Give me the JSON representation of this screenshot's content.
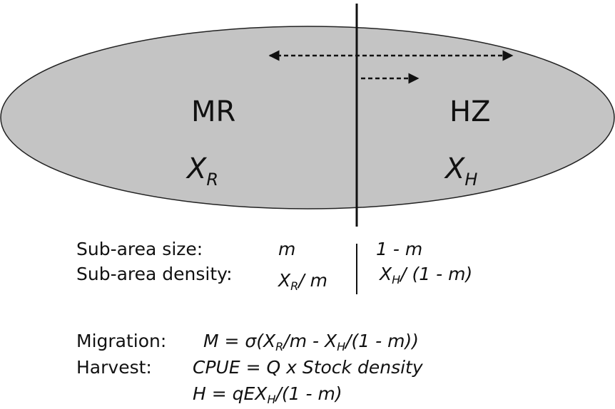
{
  "regions": [
    {
      "name": "MR",
      "symbol": [
        {
          "text": "X"
        },
        {
          "sub": "R"
        }
      ]
    },
    {
      "name": "HZ",
      "symbol": [
        {
          "text": "X"
        },
        {
          "sub": "H"
        }
      ]
    }
  ],
  "table": {
    "rows": [
      {
        "label": "Sub-area size:",
        "mr": [
          {
            "text": "m"
          }
        ],
        "hz": [
          {
            "text": "1 - m"
          }
        ]
      },
      {
        "label": "Sub-area density:",
        "mr": [
          {
            "text": "X"
          },
          {
            "sub": "R"
          },
          {
            "text": "/ m"
          }
        ],
        "hz": [
          {
            "text": "X"
          },
          {
            "sub": "H"
          },
          {
            "text": "/ (1 - m)"
          }
        ]
      }
    ]
  },
  "equations": [
    {
      "label": "Migration:",
      "formulas": [
        [
          {
            "text": "M = σ(X"
          },
          {
            "sub": "R"
          },
          {
            "text": "/m - X"
          },
          {
            "sub": "H"
          },
          {
            "text": "/(1 - m))"
          }
        ]
      ]
    },
    {
      "label": "Harvest:",
      "formulas": [
        [
          {
            "text": "CPUE = Q x Stock density"
          }
        ],
        [
          {
            "text": "H = qEX"
          },
          {
            "sub": "H"
          },
          {
            "text": "/(1 - m)"
          }
        ]
      ]
    }
  ]
}
